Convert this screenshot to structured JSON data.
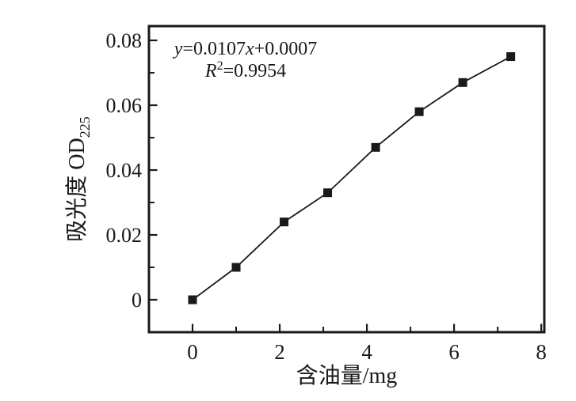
{
  "figure": {
    "background": "#ffffff",
    "ink_color": "#1a1a1a"
  },
  "chart_data": {
    "type": "line",
    "title": "",
    "xlabel": "含油量/mg",
    "ylabel_parts": [
      {
        "text": "吸光度 OD",
        "sub": false
      },
      {
        "text": "225",
        "sub": true
      }
    ],
    "ylabel_plain": "吸光度 OD225",
    "x": [
      0,
      1.0,
      2.1,
      3.1,
      4.2,
      5.2,
      6.2,
      7.3
    ],
    "y": [
      0.0,
      0.01,
      0.024,
      0.033,
      0.047,
      0.058,
      0.067,
      0.075
    ],
    "marker": "filled-square",
    "marker_size": 11,
    "line_color": "#1a1a1a",
    "marker_color": "#1a1a1a",
    "axis_color": "#1a1a1a",
    "grid": false,
    "legend": "none",
    "xlim": [
      -1,
      8.07
    ],
    "ylim": [
      -0.01,
      0.0844
    ],
    "x_ticks": {
      "major": [
        {
          "value": 0,
          "label": "0"
        },
        {
          "value": 2,
          "label": "2"
        },
        {
          "value": 4,
          "label": "4"
        },
        {
          "value": 6,
          "label": "6"
        },
        {
          "value": 8,
          "label": "8"
        }
      ],
      "minor": [
        1,
        3,
        5,
        7
      ]
    },
    "y_ticks": {
      "major": [
        {
          "value": 0,
          "label": "0"
        },
        {
          "value": 0.02,
          "label": "0.02"
        },
        {
          "value": 0.04,
          "label": "0.04"
        },
        {
          "value": 0.06,
          "label": "0.06"
        },
        {
          "value": 0.08,
          "label": "0.08"
        }
      ],
      "minor": [
        0.01,
        0.03,
        0.05,
        0.07
      ]
    },
    "annotation": {
      "plain": [
        "y=0.0107x+0.0007",
        "R²=0.9954"
      ],
      "lines": [
        {
          "segments": [
            {
              "text": "y",
              "italic": true,
              "sup": false
            },
            {
              "text": "=0.0107",
              "italic": false,
              "sup": false
            },
            {
              "text": "x",
              "italic": true,
              "sup": false
            },
            {
              "text": "+0.0007",
              "italic": false,
              "sup": false
            }
          ]
        },
        {
          "segments": [
            {
              "text": "R",
              "italic": true,
              "sup": false
            },
            {
              "text": "2",
              "italic": false,
              "sup": true
            },
            {
              "text": "=0.9954",
              "italic": false,
              "sup": false
            }
          ]
        }
      ]
    }
  }
}
